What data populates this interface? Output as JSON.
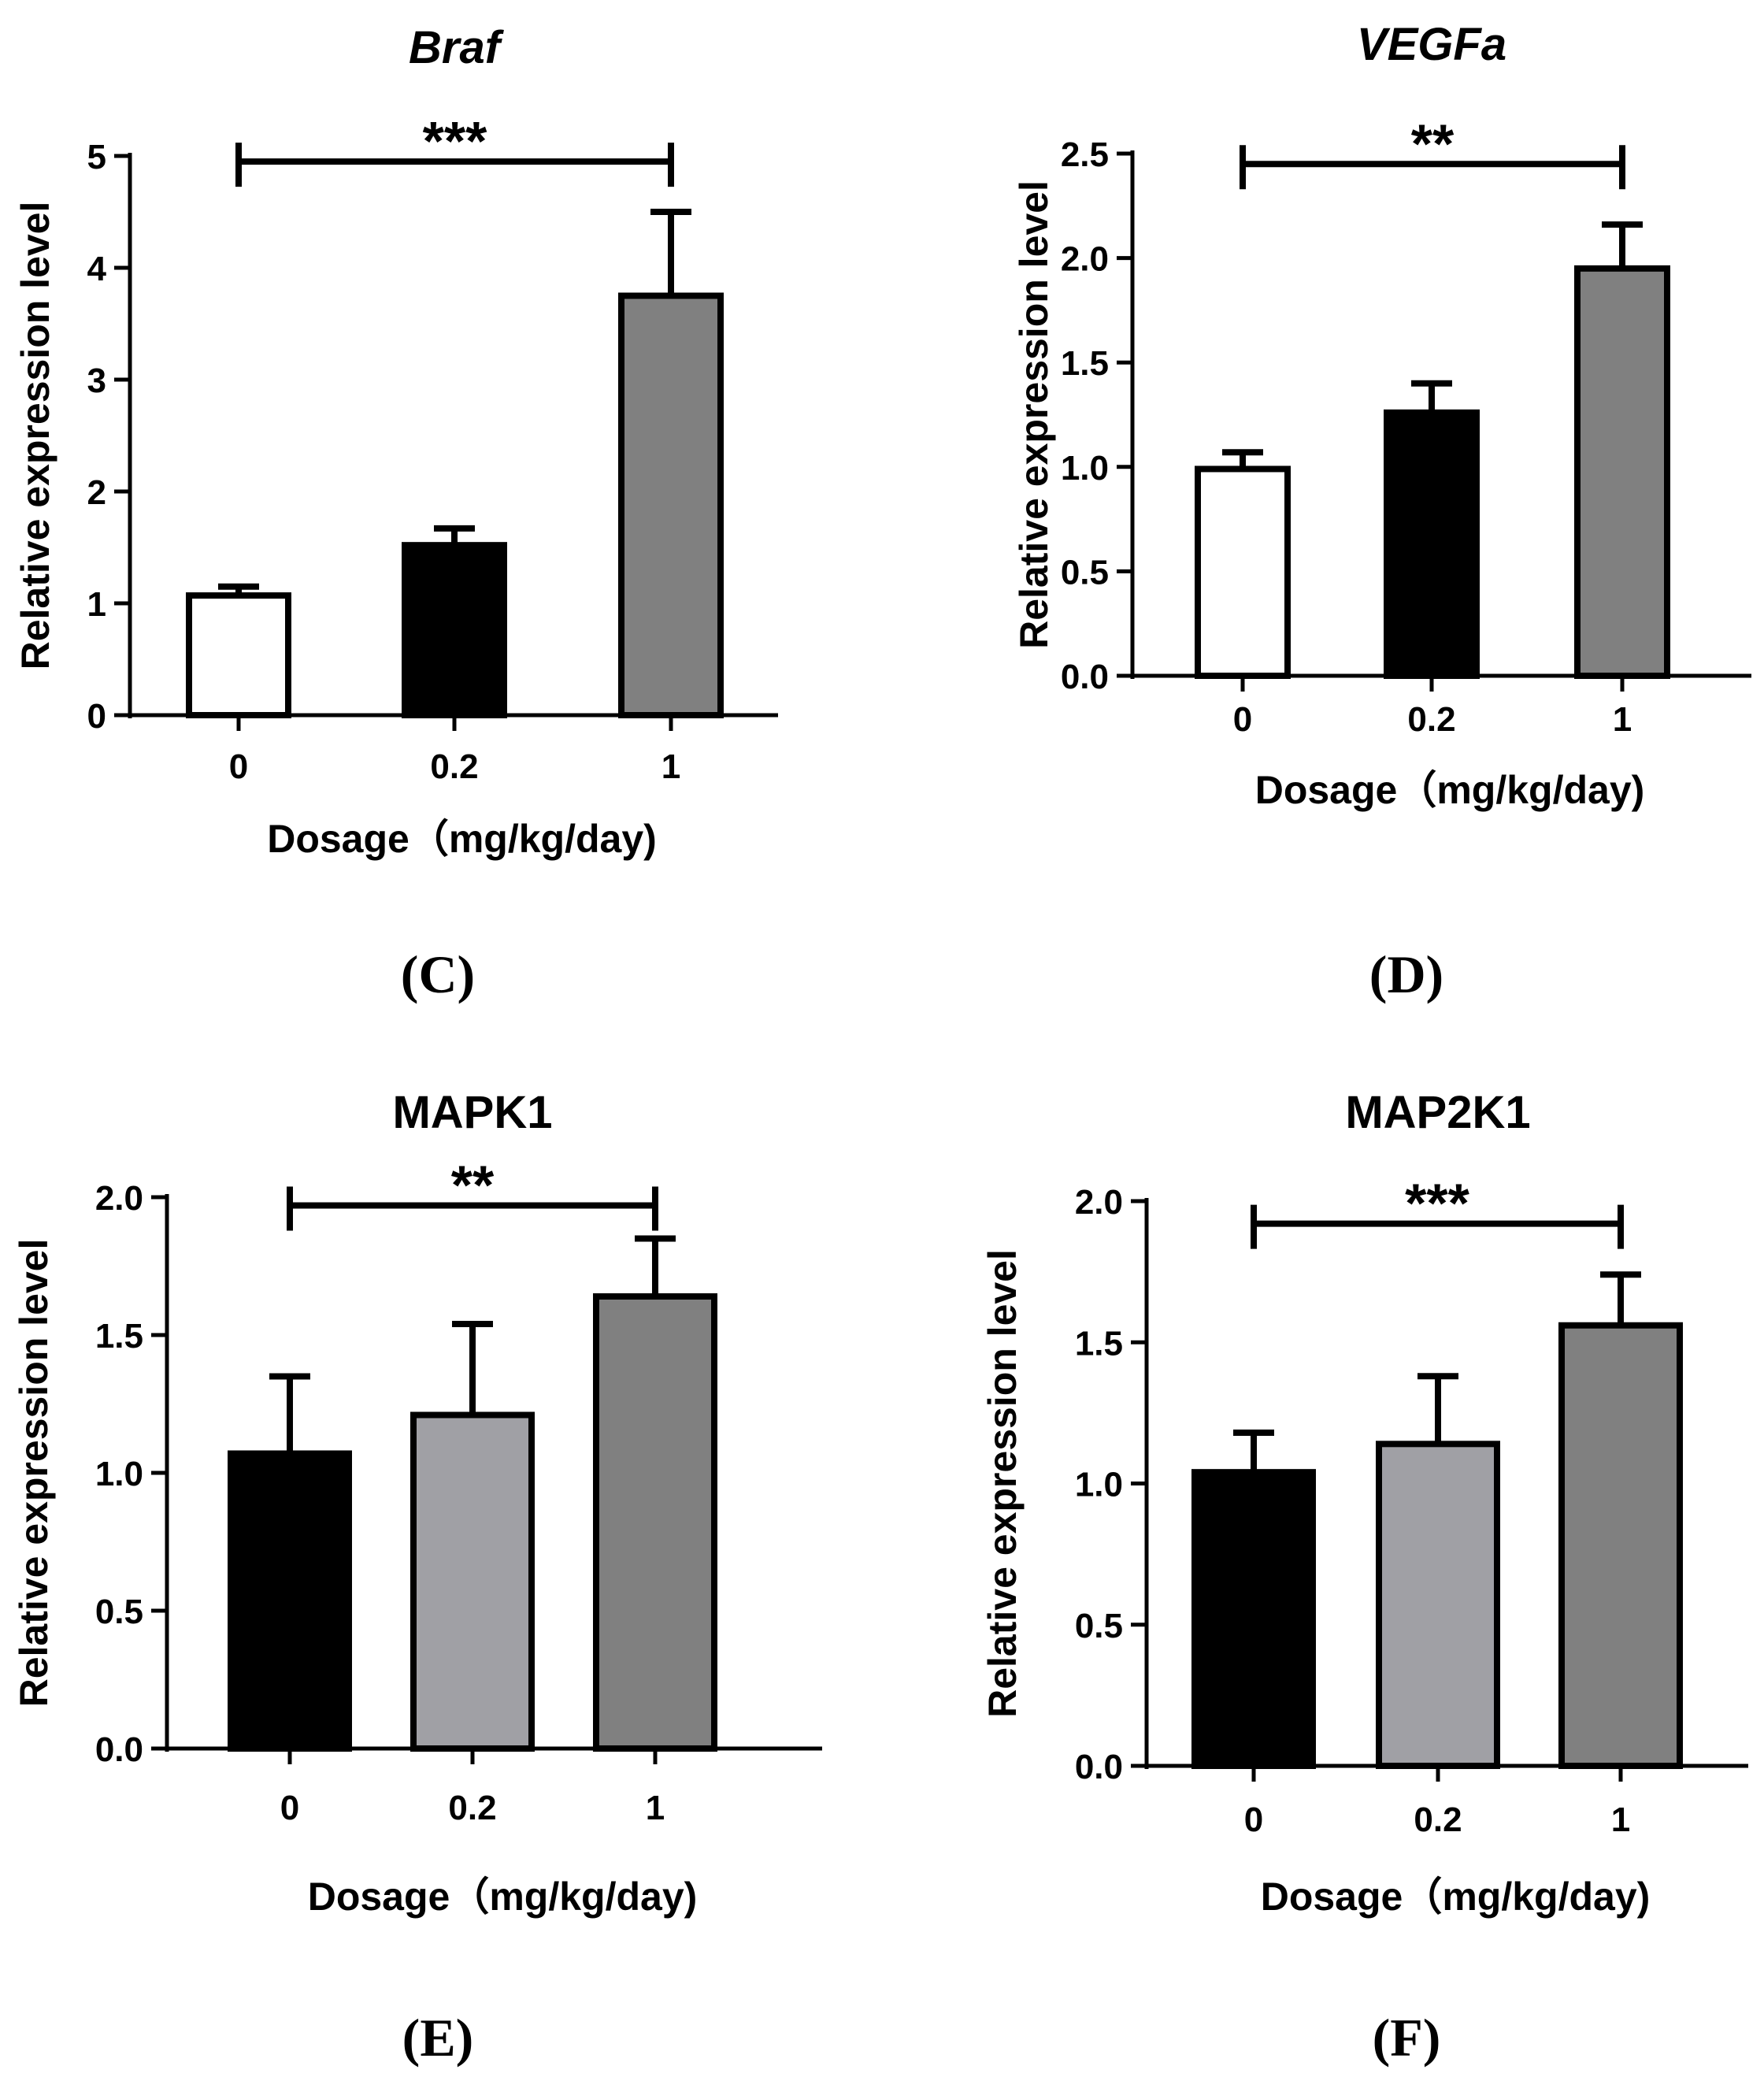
{
  "chart_data": [
    {
      "type": "bar",
      "panel": "",
      "title": "Braf",
      "title_italic": true,
      "categories": [
        "0",
        "0.2",
        "1"
      ],
      "values": [
        1.07,
        1.52,
        3.75
      ],
      "errors": [
        0.08,
        0.15,
        0.75
      ],
      "colors": [
        "#ffffff",
        "#000000",
        "#808080"
      ],
      "xlabel": "Dosage（mg/kg/day)",
      "ylabel": "Relative expression level",
      "ylim": [
        0,
        5
      ],
      "yticks": [
        0,
        1,
        2,
        3,
        4,
        5
      ],
      "ytick_labels": [
        "0",
        "1",
        "2",
        "3",
        "4",
        "5"
      ],
      "significance": {
        "from": 0,
        "to": 2,
        "label": "***",
        "y": 4.95
      }
    },
    {
      "type": "bar",
      "panel": "",
      "title": "VEGFa",
      "title_italic": true,
      "categories": [
        "0",
        "0.2",
        "1"
      ],
      "values": [
        0.99,
        1.26,
        1.95
      ],
      "errors": [
        0.08,
        0.14,
        0.21
      ],
      "colors": [
        "#ffffff",
        "#000000",
        "#808080"
      ],
      "xlabel": "Dosage（mg/kg/day)",
      "ylabel": "Relative expression level",
      "ylim": [
        0,
        2.5
      ],
      "yticks": [
        0,
        0.5,
        1,
        1.5,
        2,
        2.5
      ],
      "ytick_labels": [
        "0.0",
        "0.5",
        "1.0",
        "1.5",
        "2.0",
        "2.5"
      ],
      "significance": {
        "from": 0,
        "to": 2,
        "label": "**",
        "y": 2.45
      }
    },
    {
      "type": "bar",
      "panel": "",
      "title": "MAPK1",
      "title_italic": false,
      "categories": [
        "0",
        "0.2",
        "1"
      ],
      "values": [
        1.07,
        1.21,
        1.64
      ],
      "errors": [
        0.28,
        0.33,
        0.21
      ],
      "colors": [
        "#000000",
        "#a0a0a5",
        "#808080"
      ],
      "xlabel": "Dosage（mg/kg/day)",
      "ylabel": "Relative expression level",
      "ylim": [
        0,
        2.0
      ],
      "yticks": [
        0,
        0.5,
        1,
        1.5,
        2
      ],
      "ytick_labels": [
        "0.0",
        "0.5",
        "1.0",
        "1.5",
        "2.0"
      ],
      "significance": {
        "from": 0,
        "to": 2,
        "label": "**",
        "y": 1.97
      }
    },
    {
      "type": "bar",
      "panel": "",
      "title": "MAP2K1",
      "title_italic": false,
      "categories": [
        "0",
        "0.2",
        "1"
      ],
      "values": [
        1.04,
        1.14,
        1.56
      ],
      "errors": [
        0.14,
        0.24,
        0.18
      ],
      "colors": [
        "#000000",
        "#a0a0a5",
        "#808080"
      ],
      "xlabel": "Dosage（mg/kg/day)",
      "ylabel": "Relative expression level",
      "ylim": [
        0,
        2.0
      ],
      "yticks": [
        0,
        0.5,
        1,
        1.5,
        2
      ],
      "ytick_labels": [
        "0.0",
        "0.5",
        "1.0",
        "1.5",
        "2.0"
      ],
      "significance": {
        "from": 0,
        "to": 2,
        "label": "***",
        "y": 1.92
      }
    }
  ],
  "panel_labels": [
    "(C)",
    "(D)",
    "(E)",
    "(F)"
  ]
}
